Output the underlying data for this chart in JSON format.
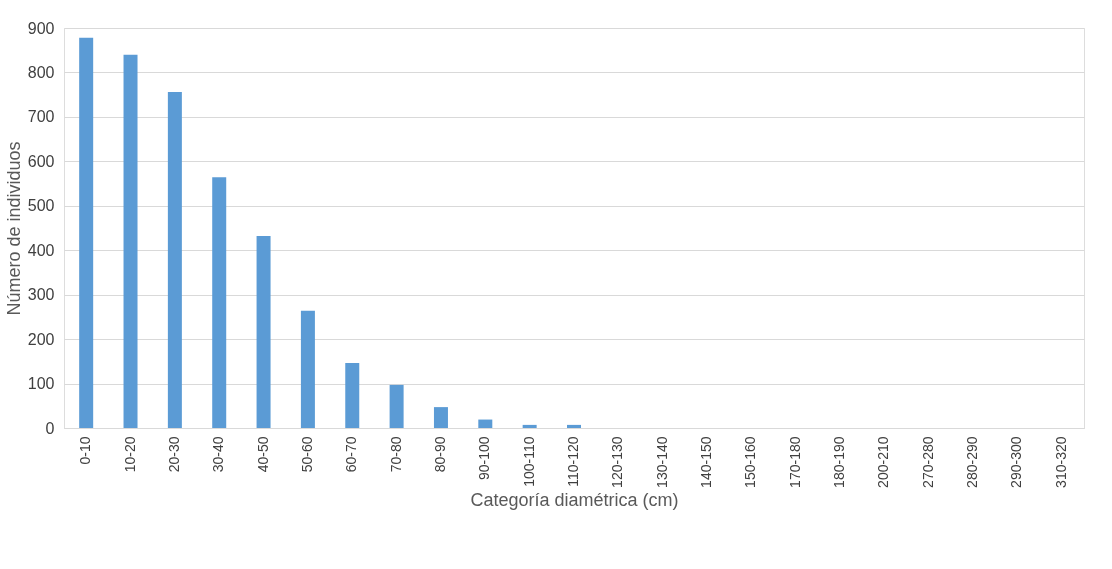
{
  "chart_data": {
    "type": "bar",
    "xlabel": "Categoría diamétrica (cm)",
    "ylabel": "Número de individuos",
    "categories": [
      "0-10",
      "10-20",
      "20-30",
      "30-40",
      "40-50",
      "50-60",
      "60-70",
      "70-80",
      "80-90",
      "90-100",
      "100-110",
      "110-120",
      "120-130",
      "130-140",
      "140-150",
      "150-160",
      "170-180",
      "180-190",
      "200-210",
      "270-280",
      "280-290",
      "290-300",
      "310-320"
    ],
    "values": [
      878,
      840,
      756,
      564,
      432,
      264,
      146,
      97,
      47,
      19,
      7,
      7,
      0,
      0,
      0,
      0,
      0,
      0,
      0,
      0,
      0,
      0,
      0
    ],
    "color": "#5b9bd5",
    "ylim": [
      0,
      900
    ],
    "yticks": [
      0,
      100,
      200,
      300,
      400,
      500,
      600,
      700,
      800,
      900
    ],
    "grid": "y"
  }
}
